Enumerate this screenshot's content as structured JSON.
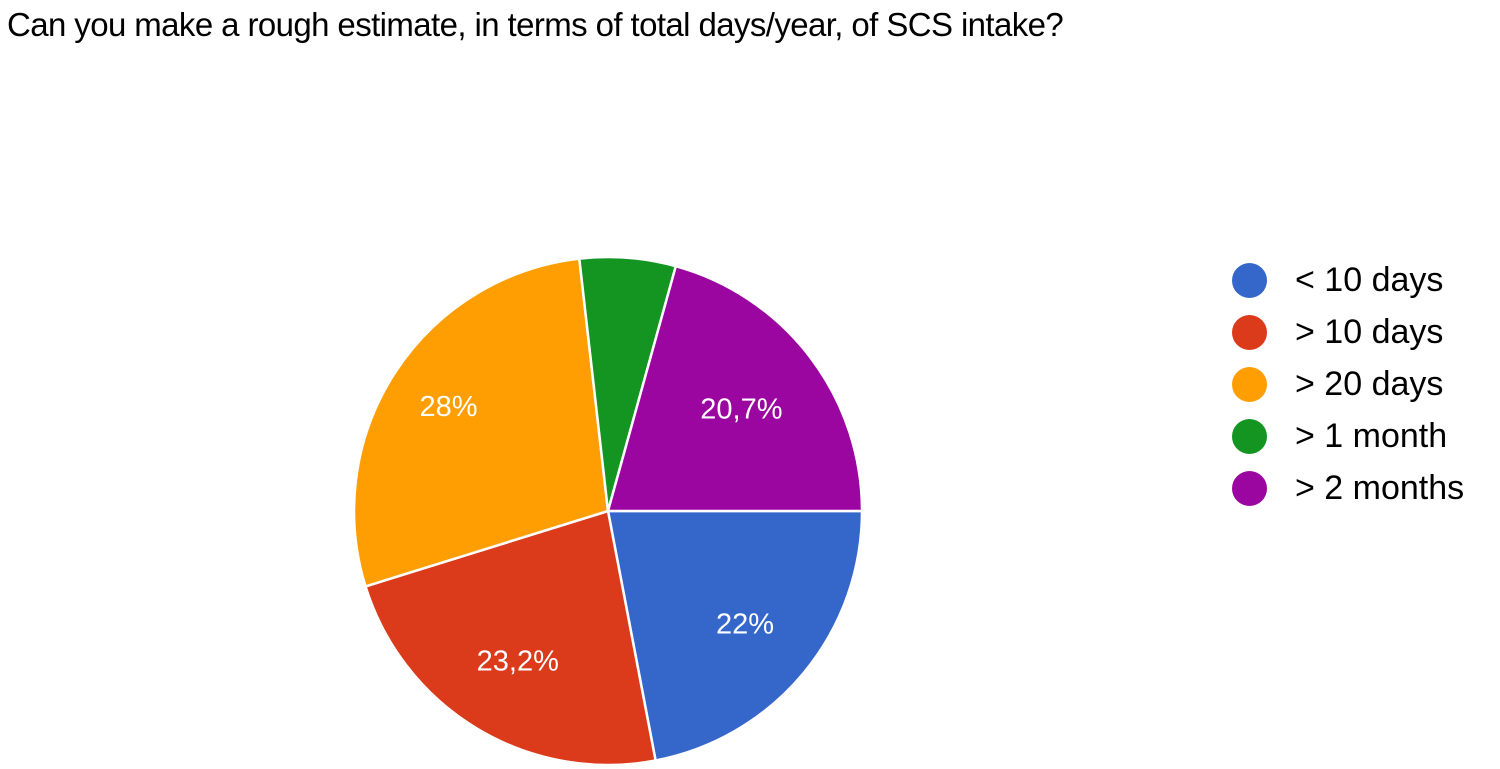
{
  "page": {
    "background": "#ffffff"
  },
  "chart_data": {
    "type": "pie",
    "title": "Can you make a rough estimate, in terms of total days/year, of SCS intake?",
    "legend_position": "right",
    "rotation": "clockwise",
    "start_position": "3-o-clock",
    "label_color": "#ffffff",
    "text_color": "#000000",
    "slices": [
      {
        "label": "< 10 days",
        "value_pct": 22.0,
        "display_label": "22%",
        "color": "#3567CB"
      },
      {
        "label": "> 10 days",
        "value_pct": 23.2,
        "display_label": "23,2%",
        "color": "#DB3A1B"
      },
      {
        "label": "> 20 days",
        "value_pct": 28.0,
        "display_label": "28%",
        "color": "#FF9E03"
      },
      {
        "label": "> 1 month",
        "value_pct": 6.1,
        "display_label": "",
        "color": "#149421"
      },
      {
        "label": "> 2 months",
        "value_pct": 20.7,
        "display_label": "20,7%",
        "color": "#9B06A0"
      }
    ]
  }
}
